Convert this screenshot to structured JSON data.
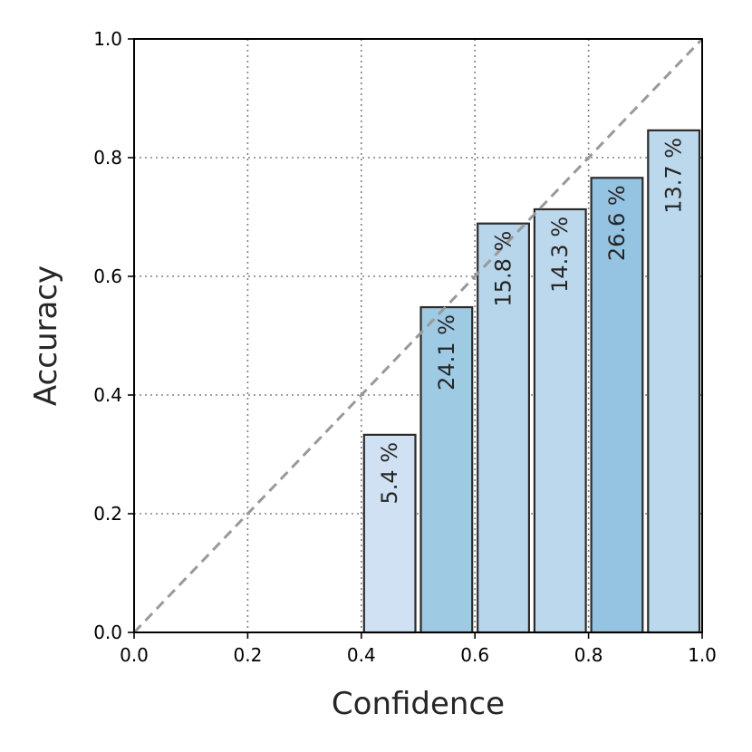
{
  "chart_data": {
    "type": "bar",
    "xlabel": "Confidence",
    "ylabel": "Accuracy",
    "xlim": [
      0.0,
      1.0
    ],
    "ylim": [
      0.0,
      1.0
    ],
    "xticks": [
      "0.0",
      "0.2",
      "0.4",
      "0.6",
      "0.8",
      "1.0"
    ],
    "yticks": [
      "0.0",
      "0.2",
      "0.4",
      "0.6",
      "0.8",
      "1.0"
    ],
    "grid": true,
    "reference_line": {
      "type": "diagonal",
      "from": [
        0,
        0
      ],
      "to": [
        1,
        1
      ],
      "color": "#999999"
    },
    "bins": [
      {
        "x0": 0.0,
        "x1": 0.1,
        "accuracy": 0.0,
        "label": "",
        "color": "#cfe1f2"
      },
      {
        "x0": 0.1,
        "x1": 0.2,
        "accuracy": 0.0,
        "label": "",
        "color": "#cfe1f2"
      },
      {
        "x0": 0.2,
        "x1": 0.3,
        "accuracy": 0.0,
        "label": "",
        "color": "#cfe1f2"
      },
      {
        "x0": 0.3,
        "x1": 0.4,
        "accuracy": 0.0,
        "label": "",
        "color": "#cfe1f2"
      },
      {
        "x0": 0.4,
        "x1": 0.5,
        "accuracy": 0.333,
        "label": "5.4 %",
        "color": "#cfe1f2"
      },
      {
        "x0": 0.5,
        "x1": 0.6,
        "accuracy": 0.548,
        "label": "24.1 %",
        "color": "#9ecae4"
      },
      {
        "x0": 0.6,
        "x1": 0.7,
        "accuracy": 0.689,
        "label": "15.8 %",
        "color": "#b8d6eb"
      },
      {
        "x0": 0.7,
        "x1": 0.8,
        "accuracy": 0.713,
        "label": "14.3 %",
        "color": "#bcd8ec"
      },
      {
        "x0": 0.8,
        "x1": 0.9,
        "accuracy": 0.766,
        "label": "26.6 %",
        "color": "#95c3e2"
      },
      {
        "x0": 0.9,
        "x1": 1.0,
        "accuracy": 0.846,
        "label": "13.7 %",
        "color": "#bcd8ec"
      }
    ]
  }
}
